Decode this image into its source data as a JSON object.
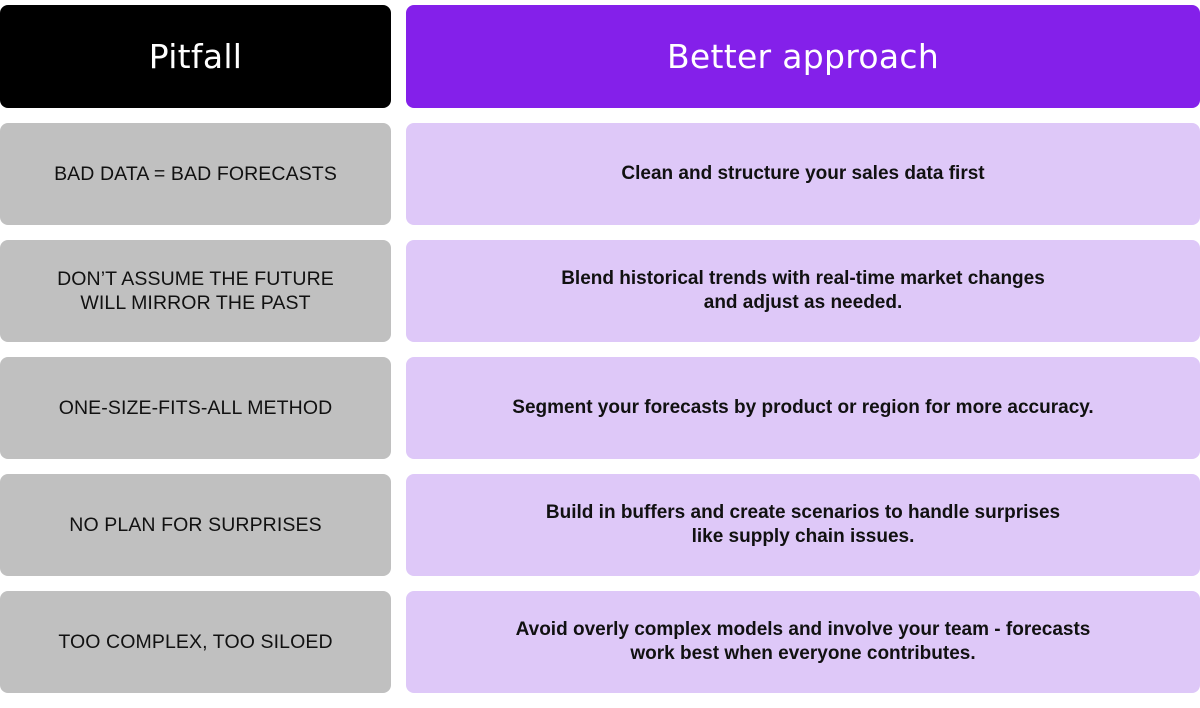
{
  "header": {
    "pitfall_label": "Pitfall",
    "approach_label": "Better approach"
  },
  "colors": {
    "pitfall_header_bg": "#000000",
    "approach_header_bg": "#8420ea",
    "pitfall_cell_bg": "#c0c0c0",
    "approach_cell_bg": "#dec8f8"
  },
  "rows": [
    {
      "pitfall": "BAD DATA = BAD FORECASTS",
      "approach": "Clean and structure your sales data first"
    },
    {
      "pitfall": "DON’T ASSUME THE FUTURE\nWILL MIRROR THE PAST",
      "approach": "Blend historical trends with real-time market changes\nand adjust as needed."
    },
    {
      "pitfall": "ONE-SIZE-FITS-ALL METHOD",
      "approach": "Segment your forecasts by product or region for more accuracy."
    },
    {
      "pitfall": "NO PLAN FOR SURPRISES",
      "approach": "Build in buffers and create scenarios to handle surprises\nlike supply chain issues."
    },
    {
      "pitfall": "TOO COMPLEX, TOO SILOED",
      "approach": "Avoid overly complex models and involve your team - forecasts\nwork best when everyone contributes."
    }
  ]
}
